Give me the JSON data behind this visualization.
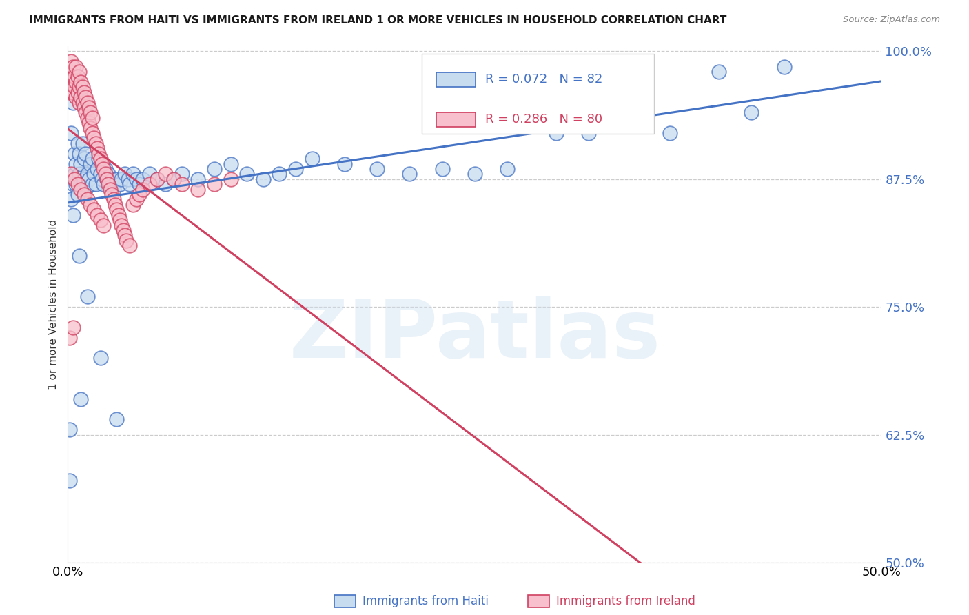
{
  "title": "IMMIGRANTS FROM HAITI VS IMMIGRANTS FROM IRELAND 1 OR MORE VEHICLES IN HOUSEHOLD CORRELATION CHART",
  "source": "Source: ZipAtlas.com",
  "ylabel": "1 or more Vehicles in Household",
  "legend_haiti": "Immigrants from Haiti",
  "legend_ireland": "Immigrants from Ireland",
  "r_haiti": 0.072,
  "n_haiti": 82,
  "r_ireland": 0.286,
  "n_ireland": 80,
  "color_haiti_fill": "#c8dcf0",
  "color_haiti_edge": "#4472c4",
  "color_ireland_fill": "#f8c0cc",
  "color_ireland_edge": "#d04060",
  "color_haiti_line": "#4472c4",
  "color_ireland_line": "#d04060",
  "color_right_axis": "#4472c4",
  "xmin": 0.0,
  "xmax": 0.5,
  "ymin": 0.5,
  "ymax": 1.005,
  "yticks": [
    0.5,
    0.625,
    0.75,
    0.875,
    1.0
  ],
  "ytick_labels": [
    "50.0%",
    "62.5%",
    "75.0%",
    "87.5%",
    "100.0%"
  ],
  "xtick_left": "0.0%",
  "xtick_right": "50.0%",
  "watermark": "ZIPatlas",
  "haiti_x": [
    0.001,
    0.002,
    0.002,
    0.003,
    0.003,
    0.004,
    0.004,
    0.005,
    0.005,
    0.006,
    0.006,
    0.007,
    0.007,
    0.008,
    0.008,
    0.009,
    0.009,
    0.01,
    0.01,
    0.011,
    0.011,
    0.012,
    0.013,
    0.014,
    0.015,
    0.015,
    0.016,
    0.017,
    0.018,
    0.019,
    0.02,
    0.021,
    0.022,
    0.023,
    0.024,
    0.025,
    0.026,
    0.027,
    0.028,
    0.03,
    0.032,
    0.033,
    0.035,
    0.037,
    0.038,
    0.04,
    0.042,
    0.044,
    0.046,
    0.05,
    0.055,
    0.06,
    0.065,
    0.07,
    0.08,
    0.09,
    0.1,
    0.11,
    0.12,
    0.13,
    0.14,
    0.15,
    0.17,
    0.19,
    0.21,
    0.23,
    0.25,
    0.27,
    0.3,
    0.32,
    0.34,
    0.37,
    0.4,
    0.42,
    0.44,
    0.003,
    0.007,
    0.012,
    0.02,
    0.03,
    0.001,
    0.008
  ],
  "haiti_y": [
    0.58,
    0.855,
    0.92,
    0.87,
    0.95,
    0.88,
    0.9,
    0.89,
    0.87,
    0.91,
    0.86,
    0.88,
    0.9,
    0.87,
    0.89,
    0.91,
    0.87,
    0.875,
    0.895,
    0.865,
    0.9,
    0.88,
    0.875,
    0.89,
    0.87,
    0.895,
    0.88,
    0.87,
    0.885,
    0.895,
    0.88,
    0.875,
    0.87,
    0.885,
    0.875,
    0.88,
    0.87,
    0.875,
    0.865,
    0.875,
    0.87,
    0.875,
    0.88,
    0.875,
    0.87,
    0.88,
    0.875,
    0.87,
    0.875,
    0.88,
    0.875,
    0.87,
    0.875,
    0.88,
    0.875,
    0.885,
    0.89,
    0.88,
    0.875,
    0.88,
    0.885,
    0.895,
    0.89,
    0.885,
    0.88,
    0.885,
    0.88,
    0.885,
    0.92,
    0.92,
    0.96,
    0.92,
    0.98,
    0.94,
    0.985,
    0.84,
    0.8,
    0.76,
    0.7,
    0.64,
    0.63,
    0.66
  ],
  "ireland_x": [
    0.001,
    0.001,
    0.002,
    0.002,
    0.003,
    0.003,
    0.003,
    0.004,
    0.004,
    0.005,
    0.005,
    0.005,
    0.006,
    0.006,
    0.007,
    0.007,
    0.007,
    0.008,
    0.008,
    0.009,
    0.009,
    0.01,
    0.01,
    0.011,
    0.011,
    0.012,
    0.012,
    0.013,
    0.013,
    0.014,
    0.014,
    0.015,
    0.015,
    0.016,
    0.017,
    0.018,
    0.019,
    0.02,
    0.021,
    0.022,
    0.023,
    0.024,
    0.025,
    0.026,
    0.027,
    0.028,
    0.029,
    0.03,
    0.031,
    0.032,
    0.033,
    0.034,
    0.035,
    0.036,
    0.038,
    0.04,
    0.042,
    0.044,
    0.046,
    0.05,
    0.055,
    0.06,
    0.065,
    0.07,
    0.08,
    0.09,
    0.1,
    0.002,
    0.004,
    0.006,
    0.008,
    0.01,
    0.012,
    0.014,
    0.016,
    0.018,
    0.02,
    0.022,
    0.001,
    0.003
  ],
  "ireland_y": [
    0.96,
    0.98,
    0.97,
    0.99,
    0.96,
    0.975,
    0.985,
    0.965,
    0.975,
    0.955,
    0.97,
    0.985,
    0.96,
    0.975,
    0.95,
    0.965,
    0.98,
    0.955,
    0.97,
    0.95,
    0.965,
    0.945,
    0.96,
    0.94,
    0.955,
    0.935,
    0.95,
    0.93,
    0.945,
    0.925,
    0.94,
    0.92,
    0.935,
    0.915,
    0.91,
    0.905,
    0.9,
    0.895,
    0.89,
    0.885,
    0.88,
    0.875,
    0.87,
    0.865,
    0.86,
    0.855,
    0.85,
    0.845,
    0.84,
    0.835,
    0.83,
    0.825,
    0.82,
    0.815,
    0.81,
    0.85,
    0.855,
    0.86,
    0.865,
    0.87,
    0.875,
    0.88,
    0.875,
    0.87,
    0.865,
    0.87,
    0.875,
    0.88,
    0.875,
    0.87,
    0.865,
    0.86,
    0.855,
    0.85,
    0.845,
    0.84,
    0.835,
    0.83,
    0.72,
    0.73
  ]
}
